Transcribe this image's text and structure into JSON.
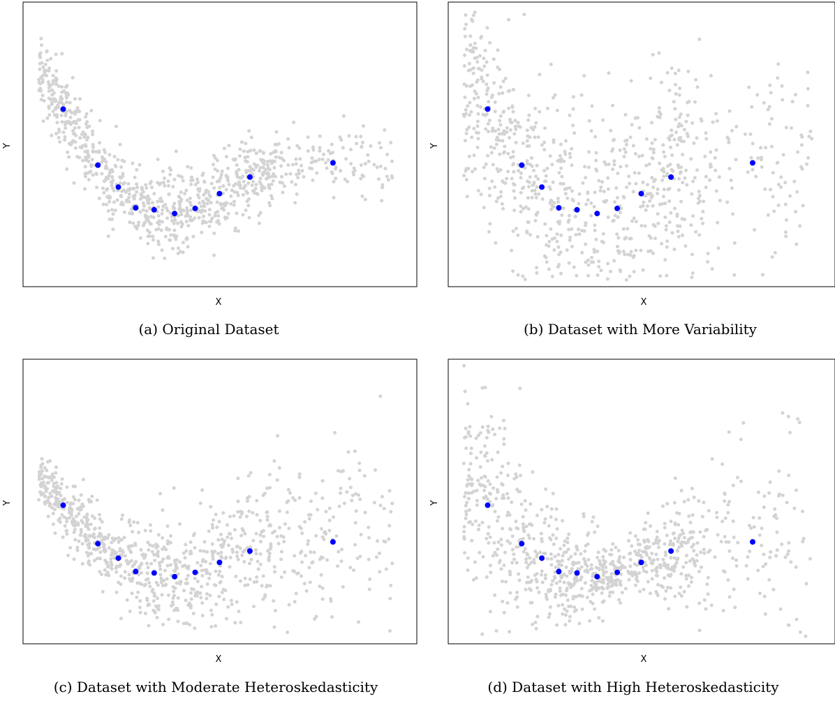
{
  "chart_data": [
    {
      "type": "scatter",
      "caption": "(a) Original Dataset",
      "xlabel": "X",
      "ylabel": "Y",
      "xlim": [
        0,
        100
      ],
      "ylim": [
        0,
        100
      ],
      "grid": false,
      "highlight_color": "#0000ff",
      "point_color": "#d3d3d3",
      "noise_profile": "moderate",
      "highlight_points": [
        {
          "x": 10.2,
          "y": 62.4
        },
        {
          "x": 19.0,
          "y": 42.7
        },
        {
          "x": 24.2,
          "y": 35.0
        },
        {
          "x": 28.6,
          "y": 27.7
        },
        {
          "x": 33.3,
          "y": 27.0
        },
        {
          "x": 38.5,
          "y": 25.7
        },
        {
          "x": 43.7,
          "y": 27.5
        },
        {
          "x": 49.9,
          "y": 32.7
        },
        {
          "x": 57.6,
          "y": 38.5
        },
        {
          "x": 78.7,
          "y": 43.5
        }
      ]
    },
    {
      "type": "scatter",
      "caption": "(b) Dataset with More Variability",
      "xlabel": "X",
      "ylabel": "Y",
      "xlim": [
        0,
        100
      ],
      "ylim": [
        0,
        100
      ],
      "grid": false,
      "highlight_color": "#0000ff",
      "point_color": "#d3d3d3",
      "noise_profile": "wide",
      "highlight_points": [
        {
          "x": 10.2,
          "y": 62.4
        },
        {
          "x": 19.0,
          "y": 42.7
        },
        {
          "x": 24.2,
          "y": 35.0
        },
        {
          "x": 28.6,
          "y": 27.7
        },
        {
          "x": 33.3,
          "y": 27.0
        },
        {
          "x": 38.5,
          "y": 25.7
        },
        {
          "x": 43.7,
          "y": 27.5
        },
        {
          "x": 49.9,
          "y": 32.7
        },
        {
          "x": 57.6,
          "y": 38.5
        },
        {
          "x": 78.7,
          "y": 43.5
        }
      ]
    },
    {
      "type": "scatter",
      "caption": "(c) Dataset with Moderate Heteroskedasticity",
      "xlabel": "X",
      "ylabel": "Y",
      "xlim": [
        0,
        100
      ],
      "ylim": [
        0,
        100
      ],
      "grid": false,
      "highlight_color": "#0000ff",
      "point_color": "#d3d3d3",
      "noise_profile": "increasing",
      "highlight_points": [
        {
          "x": 10.2,
          "y": 48.7
        },
        {
          "x": 19.0,
          "y": 35.2
        },
        {
          "x": 24.2,
          "y": 30.1
        },
        {
          "x": 28.6,
          "y": 25.4
        },
        {
          "x": 33.3,
          "y": 24.9
        },
        {
          "x": 38.5,
          "y": 23.6
        },
        {
          "x": 43.7,
          "y": 25.1
        },
        {
          "x": 49.9,
          "y": 28.6
        },
        {
          "x": 57.6,
          "y": 32.6
        },
        {
          "x": 78.7,
          "y": 35.8
        }
      ]
    },
    {
      "type": "scatter",
      "caption": "(d) Dataset with High Heteroskedasticity",
      "xlabel": "X",
      "ylabel": "Y",
      "xlim": [
        0,
        100
      ],
      "ylim": [
        0,
        100
      ],
      "grid": false,
      "highlight_color": "#0000ff",
      "point_color": "#d3d3d3",
      "noise_profile": "funnel",
      "highlight_points": [
        {
          "x": 10.2,
          "y": 48.7
        },
        {
          "x": 19.0,
          "y": 35.2
        },
        {
          "x": 24.2,
          "y": 30.1
        },
        {
          "x": 28.6,
          "y": 25.4
        },
        {
          "x": 33.3,
          "y": 24.9
        },
        {
          "x": 38.5,
          "y": 23.6
        },
        {
          "x": 43.7,
          "y": 25.1
        },
        {
          "x": 49.9,
          "y": 28.6
        },
        {
          "x": 57.6,
          "y": 32.6
        },
        {
          "x": 78.7,
          "y": 35.8
        }
      ]
    }
  ]
}
